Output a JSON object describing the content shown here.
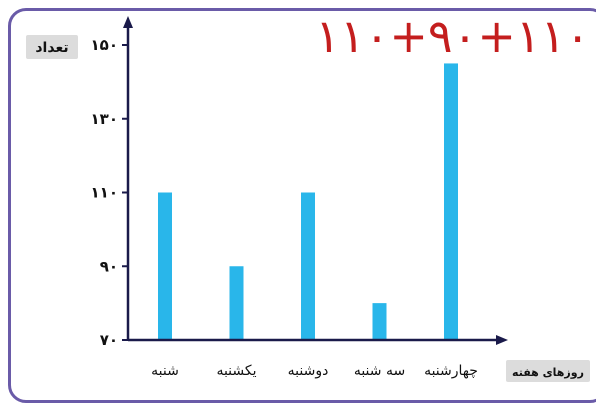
{
  "chart_data": {
    "type": "bar",
    "title": "",
    "annotation": "۱۱۰+۹۰+۱۱۰",
    "xlabel": "روزهای هفته",
    "ylabel": "تعداد",
    "categories": [
      "شنبه",
      "یکشنبه",
      "دوشنبه",
      "سه شنبه",
      "چهارشنبه"
    ],
    "values": [
      110,
      90,
      110,
      80,
      145
    ],
    "yticks": [
      70,
      90,
      110,
      130,
      150
    ],
    "ytick_labels": [
      "۷۰",
      "۹۰",
      "۱۱۰",
      "۱۳۰",
      "۱۵۰"
    ],
    "ylim": [
      70,
      150
    ],
    "grid": false,
    "bar_color": "#29b6ea",
    "axis_color": "#1a1a4a",
    "annotation_color": "#c41e1e",
    "frame_color": "#6a5ba8"
  }
}
